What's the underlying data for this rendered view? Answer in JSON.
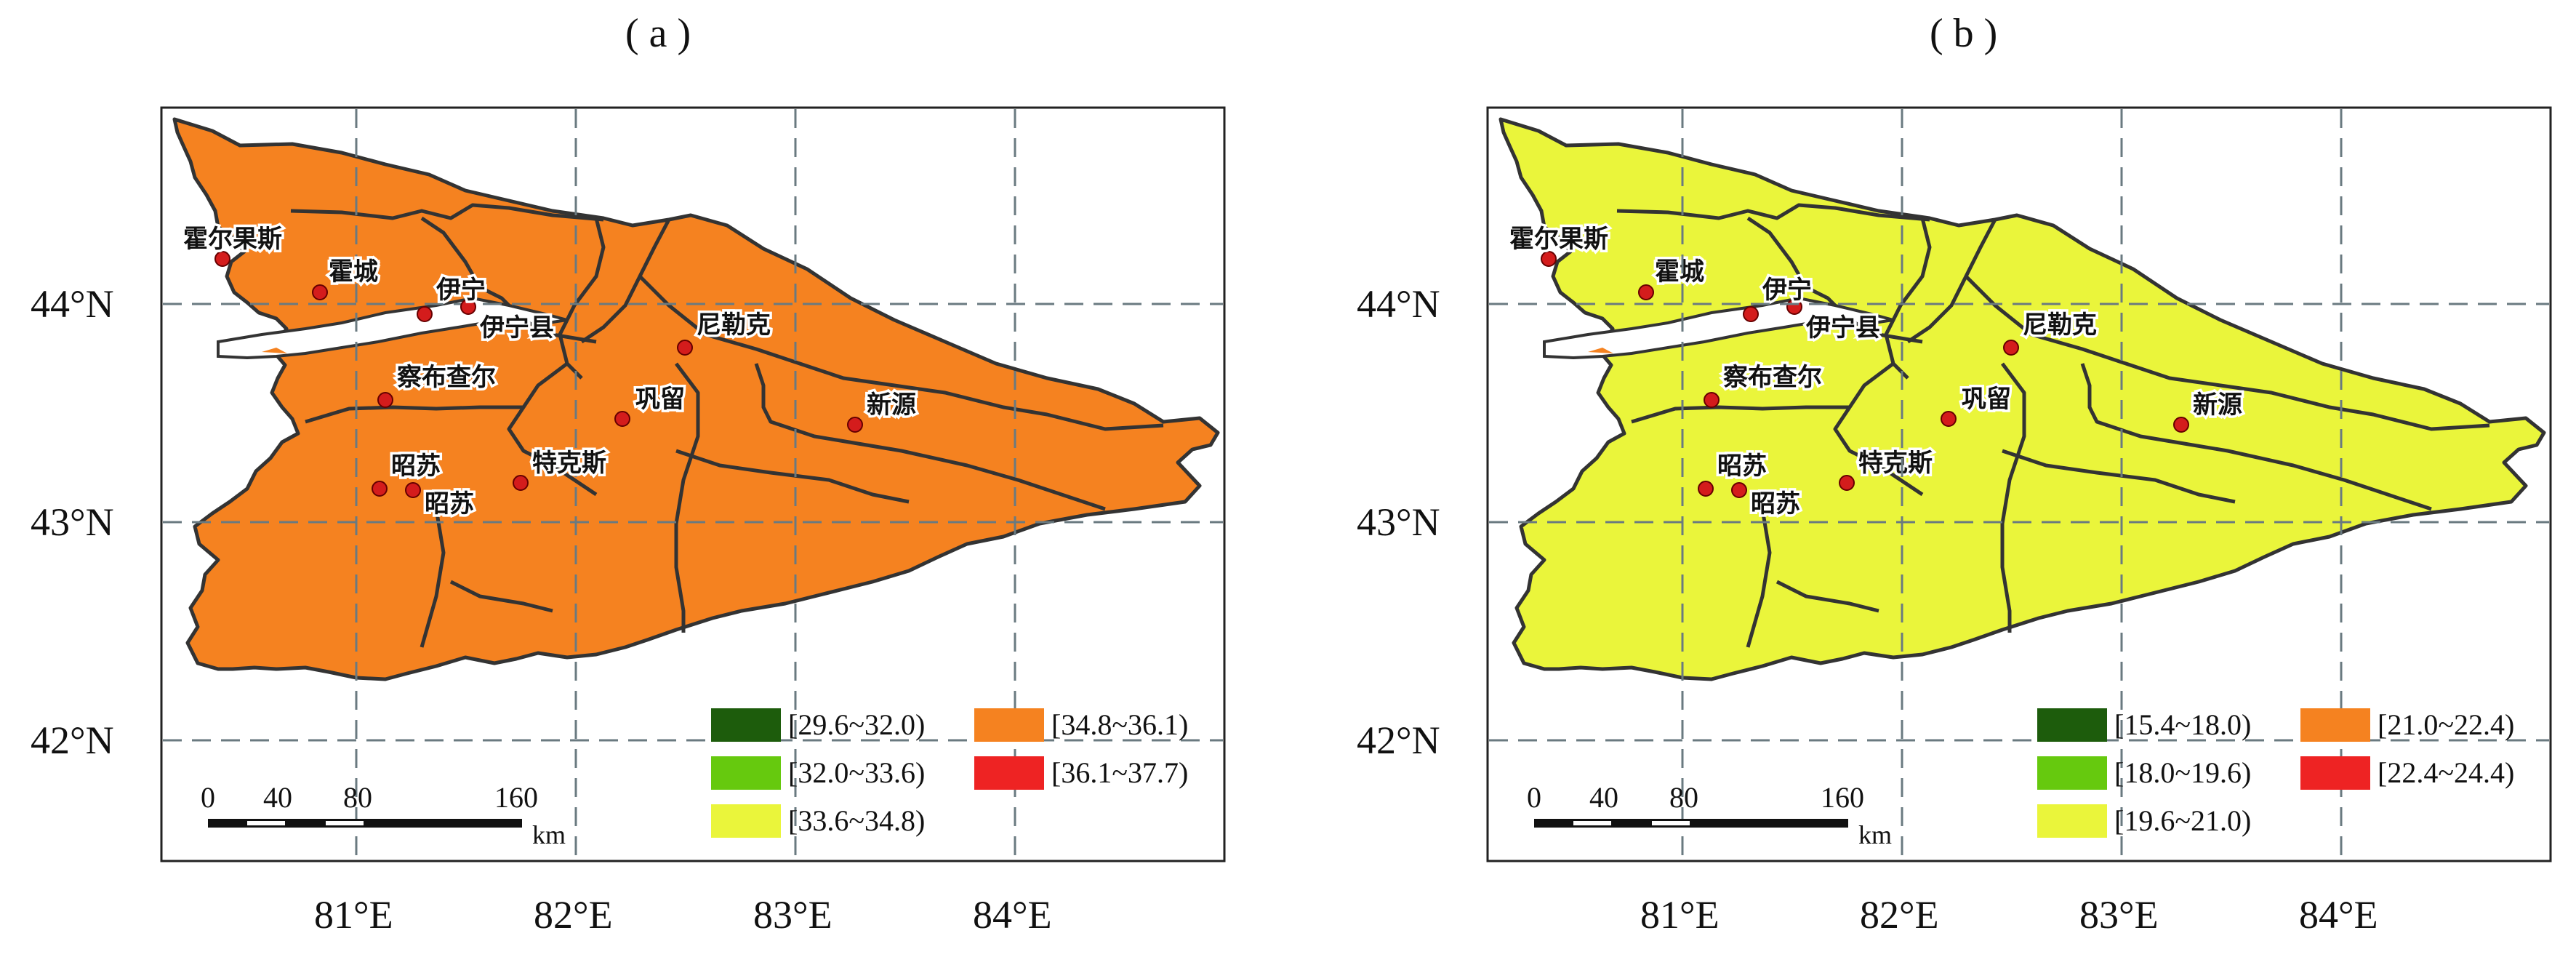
{
  "colors": {
    "dark_green": "#1d5c0c",
    "green": "#66c90e",
    "yellow": "#eaf53b",
    "orange": "#f58220",
    "red": "#ee2323",
    "border": "#333333",
    "water": "#ffffff",
    "station": "#d41c1c"
  },
  "axes": {
    "lon_ticks": [
      "81°E",
      "82°E",
      "83°E",
      "84°E"
    ],
    "lat_ticks": [
      "44°N",
      "43°N",
      "42°N"
    ]
  },
  "stations": [
    "霍尔果斯",
    "霍城",
    "伊宁",
    "伊宁县",
    "尼勒克",
    "察布查尔",
    "巩留",
    "新源",
    "昭苏",
    "昭苏",
    "特克斯"
  ],
  "scalebar": {
    "ticks": [
      "0",
      "40",
      "80",
      "160"
    ],
    "unit": "km"
  },
  "panels": [
    {
      "id": "a",
      "label": "(a)",
      "legend": [
        {
          "range": "[29.6~32.0)",
          "color_key": "dark_green"
        },
        {
          "range": "[32.0~33.6)",
          "color_key": "green"
        },
        {
          "range": "[33.6~34.8)",
          "color_key": "yellow"
        },
        {
          "range": "[34.8~36.1)",
          "color_key": "orange"
        },
        {
          "range": "[36.1~37.7)",
          "color_key": "red"
        }
      ]
    },
    {
      "id": "b",
      "label": "(b)",
      "legend": [
        {
          "range": "[15.4~18.0)",
          "color_key": "dark_green"
        },
        {
          "range": "[18.0~19.6)",
          "color_key": "green"
        },
        {
          "range": "[19.6~21.0)",
          "color_key": "yellow"
        },
        {
          "range": "[21.0~22.4)",
          "color_key": "orange"
        },
        {
          "range": "[22.4~24.4)",
          "color_key": "red"
        }
      ]
    }
  ]
}
